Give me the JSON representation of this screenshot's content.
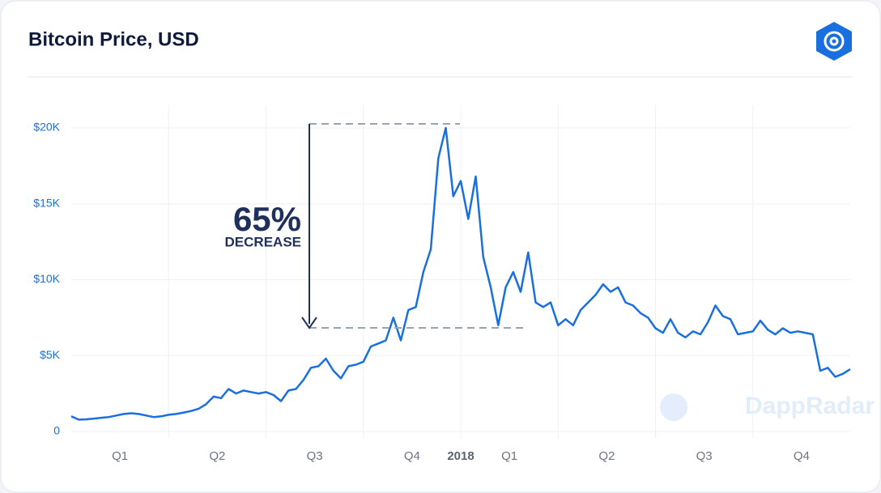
{
  "chart_data": {
    "type": "line",
    "title": "Bitcoin Price, USD",
    "annotation": {
      "percent": "65%",
      "text": "DECREASE"
    },
    "watermark": "DappRadar",
    "xlim": [
      0,
      8
    ],
    "xticks": [
      {
        "value": 0.5,
        "label": "Q1"
      },
      {
        "value": 1.5,
        "label": "Q2"
      },
      {
        "value": 2.5,
        "label": "Q3"
      },
      {
        "value": 3.5,
        "label": "Q4"
      },
      {
        "value": 4,
        "label": "2018"
      },
      {
        "value": 4.5,
        "label": "Q1"
      },
      {
        "value": 5.5,
        "label": "Q2"
      },
      {
        "value": 6.5,
        "label": "Q3"
      },
      {
        "value": 7.5,
        "label": "Q4"
      }
    ],
    "xgrid": [
      1,
      2,
      3,
      4,
      5,
      6,
      7
    ],
    "ylim": [
      0,
      20000
    ],
    "yticks": [
      0,
      {
        "value": 5000,
        "label": "$5K"
      },
      {
        "value": 10000,
        "label": "$10K"
      },
      {
        "value": 15000,
        "label": "$15K"
      },
      {
        "value": 20000,
        "label": "$20K"
      }
    ],
    "grid": true,
    "series": [
      {
        "color": "#1a6fe0",
        "values": [
          1000,
          780,
          800,
          850,
          900,
          950,
          1050,
          1150,
          1200,
          1150,
          1050,
          950,
          1000,
          1100,
          1150,
          1250,
          1350,
          1500,
          1800,
          2300,
          2200,
          2800,
          2500,
          2700,
          2600,
          2500,
          2600,
          2400,
          2000,
          2700,
          2800,
          3400,
          4200,
          4300,
          4800,
          4000,
          3500,
          4300,
          4400,
          4600,
          5600,
          5800,
          6000,
          7500,
          6000,
          8000,
          8200,
          10500,
          12000,
          18000,
          20000,
          15500,
          16500,
          14000,
          16800,
          11500,
          9500,
          7000,
          9500,
          10500,
          9200,
          11800,
          8500,
          8200,
          8500,
          7000,
          7400,
          7000,
          8000,
          8500,
          9000,
          9700,
          9200,
          9500,
          8500,
          8300,
          7800,
          7500,
          6800,
          6500,
          7400,
          6500,
          6200,
          6600,
          6400,
          7200,
          8300,
          7600,
          7400,
          6400,
          6500,
          6600,
          7300,
          6700,
          6400,
          6800,
          6500,
          6600,
          6500,
          6400,
          4000,
          4200,
          3600,
          3800,
          4100
        ]
      }
    ]
  }
}
